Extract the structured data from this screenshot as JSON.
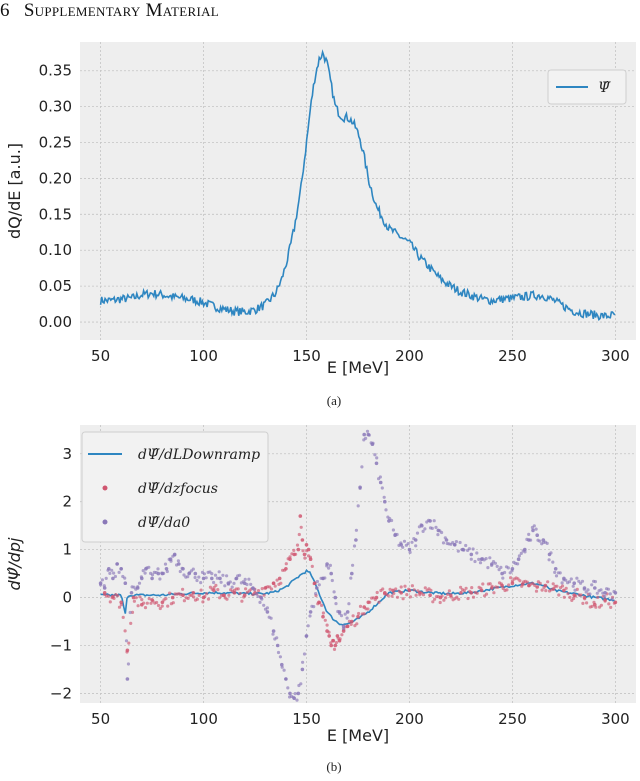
{
  "header": {
    "number": "6",
    "title": "Supplementary Material"
  },
  "chart_data": [
    {
      "type": "line",
      "caption": "(a)",
      "xlabel": "E [MeV]",
      "ylabel": "dQ/dE [a.u.]",
      "xlim": [
        40,
        310
      ],
      "ylim": [
        -0.025,
        0.39
      ],
      "xticks": [
        50,
        100,
        150,
        200,
        250,
        300
      ],
      "xtick_labels": [
        "50",
        "100",
        "150",
        "200",
        "250",
        "300"
      ],
      "yticks": [
        0.0,
        0.05,
        0.1,
        0.15,
        0.2,
        0.25,
        0.3,
        0.35
      ],
      "ytick_labels": [
        "0.00",
        "0.05",
        "0.10",
        "0.15",
        "0.20",
        "0.25",
        "0.30",
        "0.35"
      ],
      "grid": true,
      "legend_position": "top-right",
      "series": [
        {
          "name": "Ψ̂",
          "color": "#2e86c1",
          "style": "line",
          "x": [
            50,
            55,
            60,
            65,
            70,
            75,
            80,
            85,
            90,
            95,
            100,
            105,
            110,
            115,
            120,
            125,
            130,
            135,
            138,
            141,
            144,
            147,
            150,
            152,
            154,
            156,
            158,
            160,
            162,
            164,
            166,
            168,
            170,
            172,
            174,
            176,
            178,
            180,
            182,
            184,
            186,
            188,
            190,
            195,
            200,
            205,
            210,
            215,
            220,
            225,
            230,
            235,
            240,
            245,
            250,
            255,
            260,
            265,
            270,
            275,
            280,
            285,
            290,
            295,
            300
          ],
          "y": [
            0.03,
            0.03,
            0.032,
            0.033,
            0.038,
            0.04,
            0.038,
            0.035,
            0.033,
            0.031,
            0.027,
            0.022,
            0.018,
            0.015,
            0.014,
            0.017,
            0.024,
            0.04,
            0.06,
            0.09,
            0.13,
            0.18,
            0.25,
            0.3,
            0.34,
            0.365,
            0.375,
            0.36,
            0.33,
            0.3,
            0.29,
            0.285,
            0.285,
            0.28,
            0.27,
            0.255,
            0.23,
            0.2,
            0.18,
            0.16,
            0.15,
            0.14,
            0.13,
            0.12,
            0.11,
            0.09,
            0.075,
            0.06,
            0.05,
            0.042,
            0.037,
            0.032,
            0.03,
            0.032,
            0.033,
            0.035,
            0.037,
            0.037,
            0.03,
            0.022,
            0.015,
            0.012,
            0.01,
            0.008,
            0.01
          ]
        }
      ]
    },
    {
      "type": "scatter",
      "caption": "(b)",
      "xlabel": "E [MeV]",
      "ylabel": "dΨ̂/dpj",
      "xlim": [
        40,
        310
      ],
      "ylim": [
        -2.2,
        3.6
      ],
      "xticks": [
        50,
        100,
        150,
        200,
        250,
        300
      ],
      "xtick_labels": [
        "50",
        "100",
        "150",
        "200",
        "250",
        "300"
      ],
      "yticks": [
        -2,
        -1,
        0,
        1,
        2,
        3
      ],
      "ytick_labels": [
        "−2",
        "−1",
        "0",
        "1",
        "2",
        "3"
      ],
      "grid": true,
      "legend_position": "top-left",
      "series": [
        {
          "name": "dΨ̂/dLDownramp",
          "color": "#2e86c1",
          "style": "line",
          "x": [
            50,
            55,
            60,
            62,
            63,
            64,
            65,
            70,
            80,
            90,
            100,
            110,
            120,
            130,
            135,
            140,
            145,
            148,
            150,
            152,
            155,
            158,
            160,
            163,
            166,
            170,
            175,
            180,
            185,
            190,
            200,
            210,
            220,
            230,
            240,
            250,
            255,
            260,
            265,
            270,
            280,
            290,
            300
          ],
          "y": [
            0.05,
            0.05,
            0.05,
            -0.35,
            0.05,
            0.05,
            0.05,
            0.05,
            0.05,
            0.08,
            0.1,
            0.1,
            0.08,
            0.08,
            0.12,
            0.22,
            0.4,
            0.5,
            0.55,
            0.5,
            0.2,
            -0.1,
            -0.3,
            -0.45,
            -0.55,
            -0.55,
            -0.45,
            -0.3,
            -0.1,
            0.1,
            0.15,
            0.1,
            0.08,
            0.1,
            0.18,
            0.25,
            0.28,
            0.3,
            0.25,
            0.15,
            0.08,
            0.0,
            -0.05
          ]
        },
        {
          "name": "dΨ̂/dzfocus",
          "color": "#d05670",
          "style": "scatter",
          "x": [
            52,
            56,
            60,
            63,
            66,
            70,
            75,
            80,
            85,
            90,
            95,
            100,
            105,
            110,
            115,
            120,
            125,
            130,
            134,
            137,
            140,
            142,
            144,
            146,
            147,
            148,
            149,
            150,
            151,
            152,
            154,
            156,
            158,
            160,
            161,
            162,
            163,
            164,
            165,
            166,
            168,
            170,
            172,
            175,
            178,
            180,
            184,
            188,
            192,
            196,
            200,
            205,
            210,
            215,
            220,
            225,
            230,
            235,
            240,
            245,
            250,
            255,
            258,
            262,
            266,
            270,
            275,
            280,
            285,
            290,
            295,
            300
          ],
          "y": [
            0.1,
            0.02,
            -0.1,
            -1.1,
            0.0,
            -0.15,
            -0.05,
            -0.1,
            0.0,
            0.05,
            0.1,
            0.0,
            0.15,
            0.05,
            0.1,
            0.05,
            0.1,
            0.2,
            0.3,
            0.4,
            0.6,
            0.8,
            0.9,
            1.0,
            1.7,
            1.2,
            0.9,
            1.1,
            1.0,
            0.8,
            0.3,
            -0.1,
            -0.4,
            -0.7,
            -0.8,
            -1.0,
            -0.9,
            -1.0,
            -0.8,
            -0.9,
            -0.7,
            -0.6,
            -0.5,
            -0.4,
            -0.2,
            -0.1,
            0.0,
            0.1,
            0.15,
            0.1,
            0.15,
            0.1,
            0.05,
            0.0,
            0.05,
            0.1,
            0.1,
            0.15,
            0.2,
            0.25,
            0.3,
            0.28,
            0.25,
            0.22,
            0.25,
            0.18,
            0.15,
            0.05,
            0.0,
            -0.15,
            -0.05,
            -0.1
          ]
        },
        {
          "name": "dΨ̂/da0",
          "color": "#8a78b8",
          "style": "scatter",
          "x": [
            50,
            52,
            54,
            56,
            58,
            60,
            62,
            63,
            65,
            68,
            70,
            72,
            75,
            78,
            80,
            82,
            84,
            86,
            88,
            90,
            93,
            96,
            100,
            104,
            108,
            112,
            116,
            120,
            124,
            128,
            131,
            134,
            136,
            138,
            140,
            142,
            144,
            146,
            148,
            150,
            152,
            155,
            158,
            160,
            162,
            164,
            166,
            168,
            170,
            172,
            174,
            176,
            178,
            180,
            182,
            184,
            186,
            188,
            190,
            193,
            196,
            200,
            203,
            206,
            210,
            214,
            218,
            222,
            226,
            230,
            235,
            240,
            245,
            250,
            253,
            256,
            258,
            260,
            262,
            265,
            268,
            271,
            275,
            280,
            285,
            290,
            295,
            300
          ],
          "y": [
            0.3,
            0.2,
            0.6,
            0.4,
            0.7,
            0.6,
            0.3,
            -1.7,
            0.1,
            0.2,
            0.4,
            0.6,
            0.4,
            0.5,
            0.5,
            0.6,
            0.8,
            0.9,
            0.7,
            0.6,
            0.5,
            0.5,
            0.4,
            0.4,
            0.4,
            0.3,
            0.4,
            0.3,
            0.2,
            0.0,
            -0.3,
            -0.7,
            -1.0,
            -1.4,
            -1.7,
            -2.0,
            -2.1,
            -2.0,
            -1.5,
            -0.8,
            -0.3,
            0.2,
            0.4,
            0.7,
            0.5,
            0.0,
            -0.3,
            -0.6,
            -0.3,
            0.5,
            1.2,
            2.3,
            3.4,
            3.4,
            3.2,
            2.8,
            2.4,
            2.0,
            1.6,
            1.3,
            1.1,
            1.0,
            1.2,
            1.5,
            1.6,
            1.4,
            1.2,
            1.1,
            1.0,
            0.9,
            0.8,
            0.7,
            0.5,
            0.6,
            0.8,
            1.0,
            1.2,
            1.4,
            1.3,
            1.2,
            0.9,
            0.6,
            0.4,
            0.3,
            0.2,
            0.2,
            0.1,
            0.1
          ]
        }
      ]
    }
  ]
}
